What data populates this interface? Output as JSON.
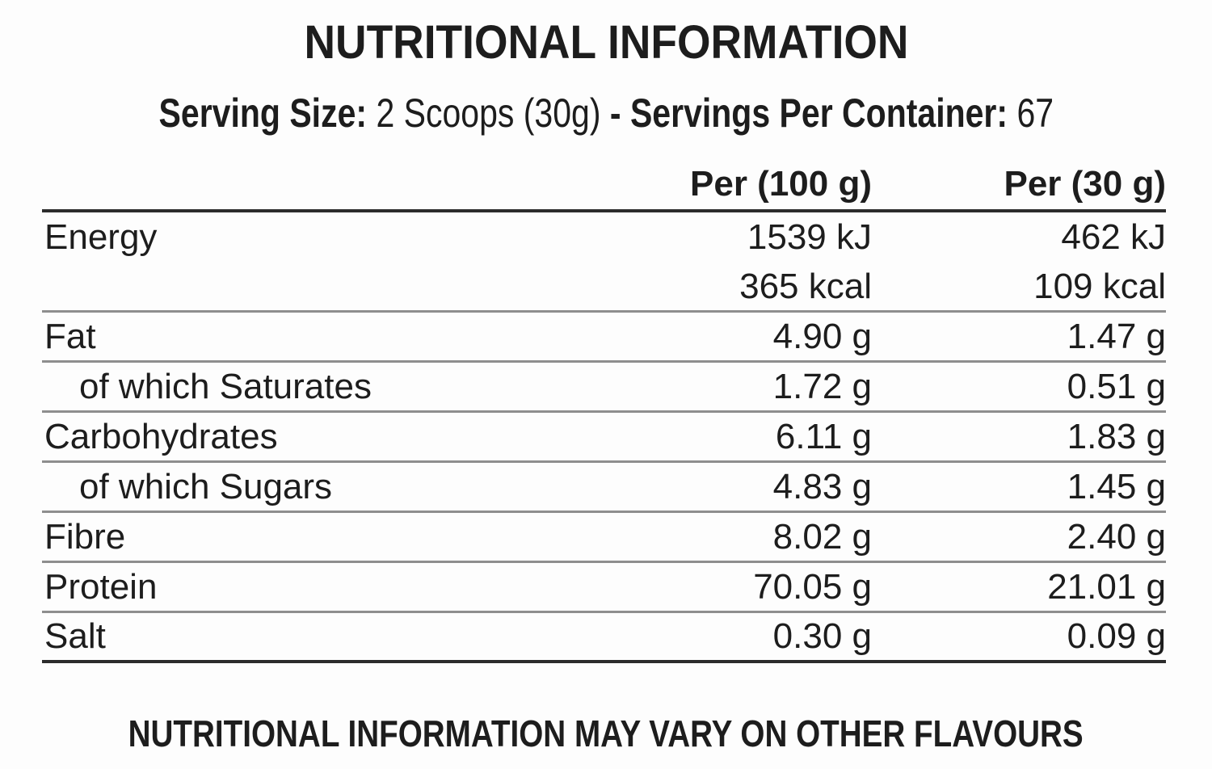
{
  "page": {
    "colors": {
      "text": "#1d1d1d",
      "sep": "#8e8e8e",
      "heavy": "#2c2c2c",
      "bg": "#fdfdfd"
    }
  },
  "title": "NUTRITIONAL INFORMATION",
  "serving_line": {
    "size_label": "Serving Size:",
    "size_value": "2 Scoops (30g)",
    "dash": "-",
    "container_label": "Servings Per Container:",
    "container_value": "67"
  },
  "table": {
    "col_headers": [
      "Per (100 g)",
      "Per (30 g)"
    ],
    "rows": [
      {
        "label": "Energy",
        "indent": false,
        "values": [
          "1539 kJ",
          "462 kJ"
        ],
        "rule_after": "none"
      },
      {
        "label": "",
        "indent": false,
        "values": [
          "365 kcal",
          "109 kcal"
        ],
        "rule_after": "thin"
      },
      {
        "label": "Fat",
        "indent": false,
        "values": [
          "4.90 g",
          "1.47 g"
        ],
        "rule_after": "thin"
      },
      {
        "label": "of which Saturates",
        "indent": true,
        "values": [
          "1.72 g",
          "0.51 g"
        ],
        "rule_after": "thin"
      },
      {
        "label": "Carbohydrates",
        "indent": false,
        "values": [
          "6.11 g",
          "1.83 g"
        ],
        "rule_after": "thin"
      },
      {
        "label": "of which Sugars",
        "indent": true,
        "values": [
          "4.83 g",
          "1.45 g"
        ],
        "rule_after": "thin"
      },
      {
        "label": "Fibre",
        "indent": false,
        "values": [
          "8.02 g",
          "2.40 g"
        ],
        "rule_after": "thin"
      },
      {
        "label": "Protein",
        "indent": false,
        "values": [
          "70.05 g",
          "21.01 g"
        ],
        "rule_after": "thin"
      },
      {
        "label": "Salt",
        "indent": false,
        "values": [
          "0.30 g",
          "0.09 g"
        ],
        "rule_after": "heavy"
      }
    ]
  },
  "footer": "NUTRITIONAL INFORMATION MAY VARY ON OTHER FLAVOURS"
}
